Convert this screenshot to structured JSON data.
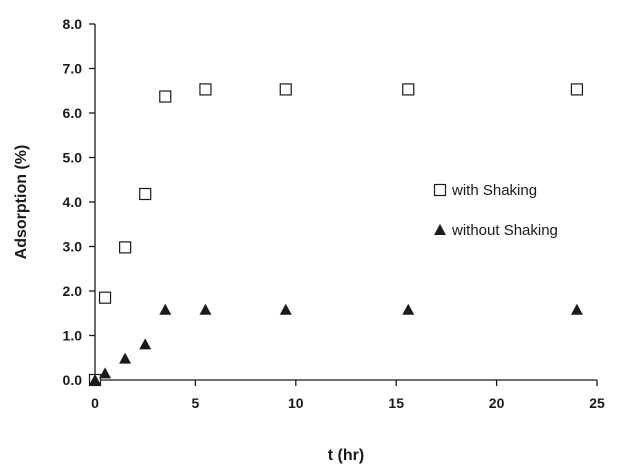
{
  "chart_data": {
    "type": "scatter",
    "xlabel": "t (hr)",
    "ylabel": "Adsorption (%)",
    "xlim": [
      0,
      25
    ],
    "ylim": [
      0,
      8
    ],
    "x_ticks": [
      "0",
      "5",
      "10",
      "15",
      "20",
      "25"
    ],
    "y_ticks": [
      "0.0",
      "1.0",
      "2.0",
      "3.0",
      "4.0",
      "5.0",
      "6.0",
      "7.0",
      "8.0"
    ],
    "grid": false,
    "legend_position": "right",
    "series": [
      {
        "name": "with Shaking",
        "marker": "open-square",
        "color": "#1a1a1a",
        "x": [
          0,
          0.5,
          1.5,
          2.5,
          3.5,
          5.5,
          9.5,
          15.6,
          24
        ],
        "y": [
          0.0,
          1.85,
          2.98,
          4.18,
          6.37,
          6.53,
          6.53,
          6.53,
          6.53
        ]
      },
      {
        "name": "without Shaking",
        "marker": "filled-triangle",
        "color": "#1a1a1a",
        "x": [
          0,
          0.5,
          1.5,
          2.5,
          3.5,
          5.5,
          9.5,
          15.6,
          24
        ],
        "y": [
          0.0,
          0.15,
          0.48,
          0.8,
          1.58,
          1.58,
          1.58,
          1.58,
          1.58
        ]
      }
    ]
  }
}
